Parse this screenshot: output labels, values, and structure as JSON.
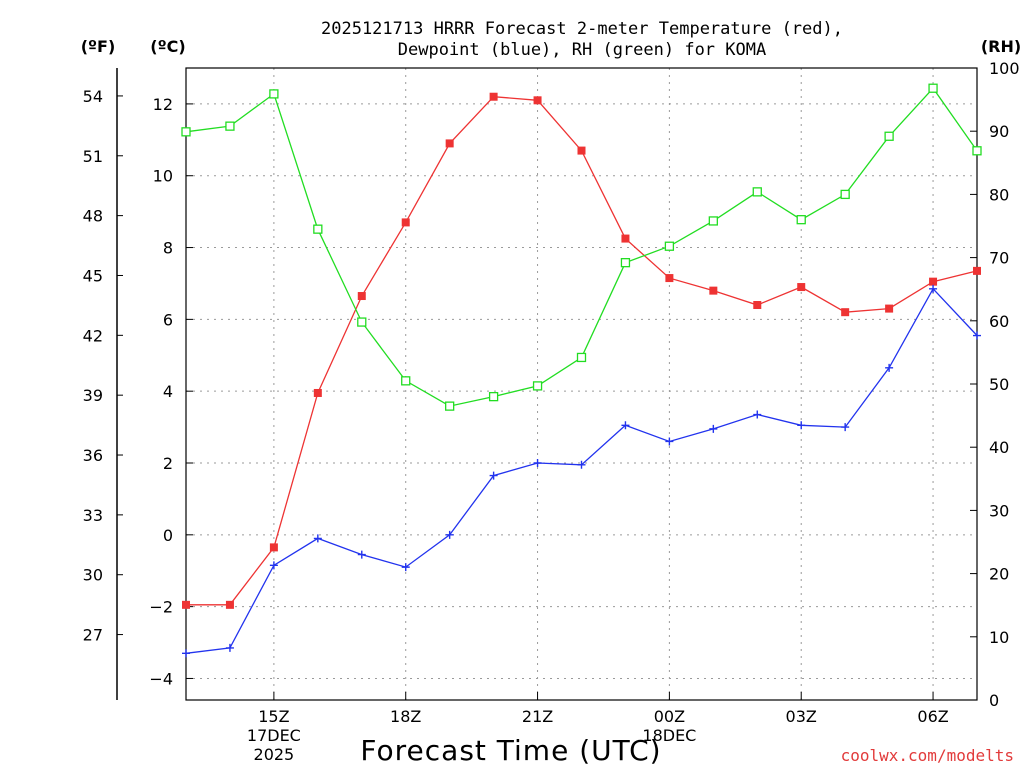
{
  "chart_data": {
    "type": "line",
    "title_line1": "2025121713 HRRR Forecast 2-meter Temperature (red),",
    "title_line2": "Dewpoint (blue), RH (green) for KOMA",
    "xlabel": "Forecast Time (UTC)",
    "credit": "coolwx.com/modelts",
    "units": {
      "fahrenheit": "(ºF)",
      "celsius": "(ºC)",
      "rh": "(RH)"
    },
    "x_hours": [
      13,
      14,
      15,
      16,
      17,
      18,
      19,
      20,
      21,
      22,
      23,
      24,
      25,
      26,
      27,
      28,
      29,
      30,
      31
    ],
    "xlim": [
      13,
      31
    ],
    "x_ticks": [
      {
        "x": 15,
        "lines": [
          "15Z",
          "17DEC",
          "2025"
        ]
      },
      {
        "x": 18,
        "lines": [
          "18Z"
        ]
      },
      {
        "x": 21,
        "lines": [
          "21Z"
        ]
      },
      {
        "x": 24,
        "lines": [
          "00Z",
          "18DEC"
        ]
      },
      {
        "x": 27,
        "lines": [
          "03Z"
        ]
      },
      {
        "x": 30,
        "lines": [
          "06Z"
        ]
      }
    ],
    "celsius_axis": {
      "ylim": [
        -4.6,
        13.0
      ],
      "ticks": [
        "-4",
        "-2",
        "0",
        "2",
        "4",
        "6",
        "8",
        "10",
        "12"
      ]
    },
    "fahrenheit_axis": {
      "ticks": [
        "27",
        "30",
        "33",
        "36",
        "39",
        "42",
        "45",
        "48",
        "51",
        "54"
      ]
    },
    "rh_axis": {
      "ylim": [
        0,
        100
      ],
      "ticks": [
        "0",
        "10",
        "20",
        "30",
        "40",
        "50",
        "60",
        "70",
        "80",
        "90",
        "100"
      ]
    },
    "series": [
      {
        "name": "2-meter Temperature",
        "unit": "C",
        "color": "#ee3333",
        "marker": "filled-square",
        "values": [
          -1.95,
          -1.95,
          -0.35,
          3.95,
          6.65,
          8.7,
          10.9,
          12.2,
          12.1,
          10.7,
          8.25,
          7.15,
          6.8,
          6.4,
          6.9,
          6.2,
          6.3,
          7.05,
          7.35
        ]
      },
      {
        "name": "Dewpoint",
        "unit": "C",
        "color": "#2233ee",
        "marker": "plus",
        "values": [
          -3.3,
          -3.15,
          -0.85,
          -0.1,
          -0.55,
          -0.9,
          0.0,
          1.65,
          2.0,
          1.95,
          3.05,
          2.6,
          2.95,
          3.35,
          3.05,
          3.0,
          4.65,
          6.85,
          5.55
        ]
      },
      {
        "name": "RH",
        "unit": "%",
        "color": "#22dd22",
        "marker": "open-square",
        "values": [
          89.9,
          90.8,
          95.9,
          74.5,
          59.8,
          50.5,
          46.5,
          48.0,
          49.7,
          54.2,
          69.2,
          71.8,
          75.8,
          80.4,
          76.0,
          80.0,
          89.2,
          96.8,
          86.9
        ]
      }
    ]
  }
}
